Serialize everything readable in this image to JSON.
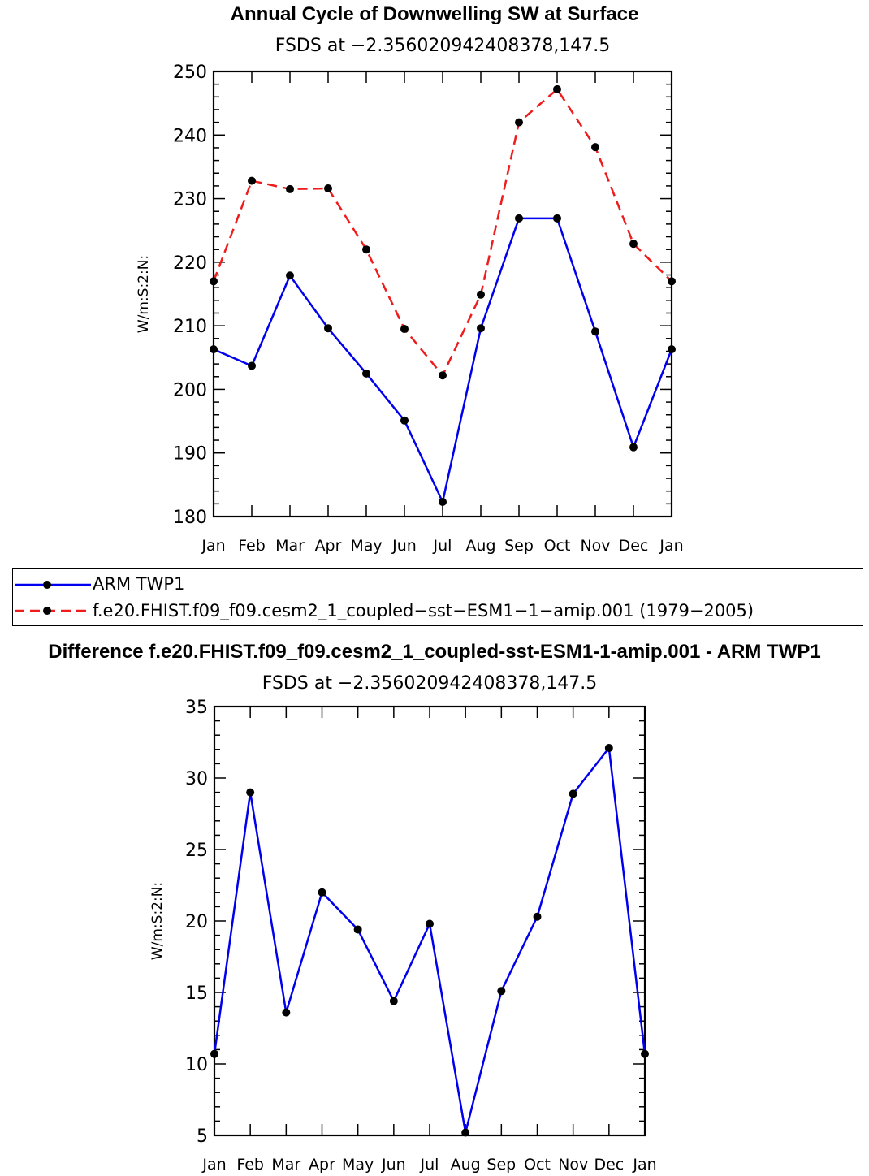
{
  "chart_data": [
    {
      "type": "line",
      "title": "Annual Cycle of Downwelling SW at Surface",
      "subtitle": "FSDS at −2.356020942408378,147.5",
      "xlabel": "",
      "ylabel": "W/m:S:2:N:",
      "categories": [
        "Jan",
        "Feb",
        "Mar",
        "Apr",
        "May",
        "Jun",
        "Jul",
        "Aug",
        "Sep",
        "Oct",
        "Nov",
        "Dec",
        "Jan"
      ],
      "ylim": [
        180,
        250
      ],
      "yticks": [
        180,
        190,
        200,
        210,
        220,
        230,
        240,
        250
      ],
      "series": [
        {
          "name": "ARM TWP1",
          "color": "#0000ee",
          "dash": "solid",
          "values": [
            206.3,
            203.7,
            217.9,
            209.6,
            202.5,
            195.1,
            182.3,
            209.6,
            226.9,
            226.9,
            209.1,
            190.9,
            206.3
          ]
        },
        {
          "name": "f.e20.FHIST.f09_f09.cesm2_1_coupled−sst−ESM1−1−amip.001 (1979−2005)",
          "color": "#ee1c1c",
          "dash": "dashed",
          "values": [
            217.0,
            232.8,
            231.5,
            231.6,
            222.0,
            209.5,
            202.2,
            214.9,
            242.0,
            247.2,
            238.1,
            222.9,
            217.0
          ]
        }
      ],
      "legend_position": "below"
    },
    {
      "type": "line",
      "title": "Difference f.e20.FHIST.f09_f09.cesm2_1_coupled-sst-ESM1-1-amip.001 - ARM TWP1",
      "subtitle": "FSDS at −2.356020942408378,147.5",
      "xlabel": "",
      "ylabel": "W/m:S:2:N:",
      "categories": [
        "Jan",
        "Feb",
        "Mar",
        "Apr",
        "May",
        "Jun",
        "Jul",
        "Aug",
        "Sep",
        "Oct",
        "Nov",
        "Dec",
        "Jan"
      ],
      "ylim": [
        5,
        35
      ],
      "yticks": [
        5,
        10,
        15,
        20,
        25,
        30,
        35
      ],
      "series": [
        {
          "color": "#0000ee",
          "dash": "solid",
          "values": [
            10.7,
            29.0,
            13.6,
            22.0,
            19.4,
            14.4,
            19.8,
            5.2,
            15.1,
            20.3,
            28.9,
            32.1,
            10.7
          ]
        }
      ]
    }
  ]
}
